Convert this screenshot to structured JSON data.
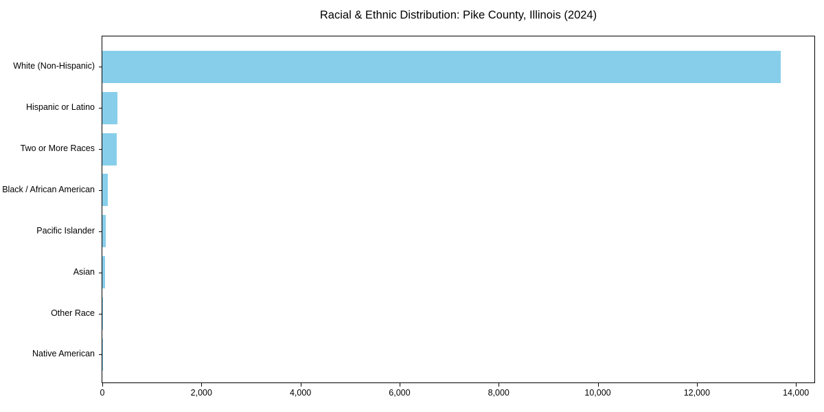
{
  "chart_data": {
    "type": "bar",
    "orientation": "horizontal",
    "title": "Racial & Ethnic Distribution: Pike County, Illinois (2024)",
    "categories": [
      "White (Non-Hispanic)",
      "Hispanic or Latino",
      "Two or More Races",
      "Black / African American",
      "Pacific Islander",
      "Asian",
      "Other Race",
      "Native American"
    ],
    "values": [
      13700,
      310,
      295,
      105,
      70,
      55,
      8,
      3
    ],
    "xlabel": "",
    "ylabel": "",
    "xlim": [
      0,
      14400
    ],
    "xticks": [
      0,
      2000,
      4000,
      6000,
      8000,
      10000,
      12000,
      14000
    ],
    "xtick_labels": [
      "0",
      "2,000",
      "4,000",
      "6,000",
      "8,000",
      "10,000",
      "12,000",
      "14,000"
    ],
    "bar_color": "#87CEEB",
    "axis_color": "#000000",
    "text_color": "#000000",
    "background_color": "#ffffff",
    "grid": false,
    "legend_position": "none"
  }
}
